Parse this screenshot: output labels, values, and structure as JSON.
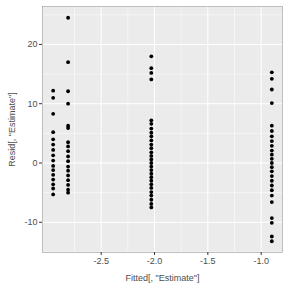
{
  "chart_data": {
    "type": "scatter",
    "xlabel": "Fitted[, \"Estimate\"]",
    "ylabel": "Resid[, \"Estimate\"]",
    "x": [
      -2.95,
      -2.95,
      -2.95,
      -2.95,
      -2.95,
      -2.95,
      -2.95,
      -2.95,
      -2.95,
      -2.95,
      -2.95,
      -2.95,
      -2.95,
      -2.95,
      -2.95,
      -2.95,
      -2.81,
      -2.81,
      -2.81,
      -2.81,
      -2.81,
      -2.81,
      -2.81,
      -2.81,
      -2.81,
      -2.81,
      -2.81,
      -2.81,
      -2.81,
      -2.81,
      -2.81,
      -2.81,
      -2.81,
      -2.81,
      -2.03,
      -2.03,
      -2.03,
      -2.03,
      -2.03,
      -2.03,
      -2.03,
      -2.03,
      -2.03,
      -2.03,
      -2.03,
      -2.03,
      -2.03,
      -2.03,
      -2.03,
      -2.03,
      -2.03,
      -2.03,
      -2.03,
      -2.03,
      -2.03,
      -2.03,
      -2.03,
      -2.03,
      -2.03,
      -2.03,
      -2.03,
      -2.03,
      -0.9,
      -0.9,
      -0.9,
      -0.9,
      -0.9,
      -0.9,
      -0.9,
      -0.9,
      -0.9,
      -0.9,
      -0.9,
      -0.9,
      -0.9,
      -0.9,
      -0.9,
      -0.9,
      -0.9,
      -0.9,
      -0.9,
      -0.9,
      -0.9,
      -0.9,
      -0.9,
      -0.9,
      -0.9
    ],
    "values": [
      12.2,
      11.0,
      8.3,
      5.2,
      4.0,
      3.1,
      2.2,
      1.3,
      0.4,
      -0.5,
      -1.2,
      -2.0,
      -2.8,
      -3.6,
      -4.3,
      -5.3,
      24.5,
      17.0,
      12.1,
      10.0,
      6.3,
      5.9,
      3.5,
      2.8,
      2.0,
      1.1,
      0.3,
      -0.6,
      -1.3,
      -2.1,
      -2.9,
      -3.7,
      -4.5,
      -5.0,
      18.0,
      16.0,
      15.2,
      14.1,
      7.2,
      6.6,
      5.8,
      5.1,
      4.5,
      3.8,
      3.1,
      2.5,
      1.8,
      1.2,
      0.6,
      0.0,
      -0.6,
      -1.2,
      -1.8,
      -2.4,
      -3.0,
      -3.6,
      -4.2,
      -4.9,
      -5.5,
      -6.2,
      -6.9,
      -7.5,
      15.3,
      14.2,
      12.4,
      10.1,
      6.3,
      5.4,
      4.5,
      3.7,
      2.9,
      2.1,
      1.4,
      0.7,
      0.0,
      -0.7,
      -1.4,
      -2.2,
      -3.0,
      -3.8,
      -4.6,
      -5.5,
      -6.6,
      -9.3,
      -10.1,
      -12.4,
      -13.2
    ],
    "color": "#000000",
    "marker": "circle",
    "xlim": [
      -3.05,
      -0.8
    ],
    "xticks": [
      -2.5,
      {
        "value": -2,
        "label": "-2.0"
      },
      -1.5,
      {
        "value": -1,
        "label": "-1.0"
      }
    ],
    "ylim": [
      -15.1,
      26.4
    ],
    "yticks": [
      -10,
      0,
      10,
      20
    ],
    "grid": true
  }
}
